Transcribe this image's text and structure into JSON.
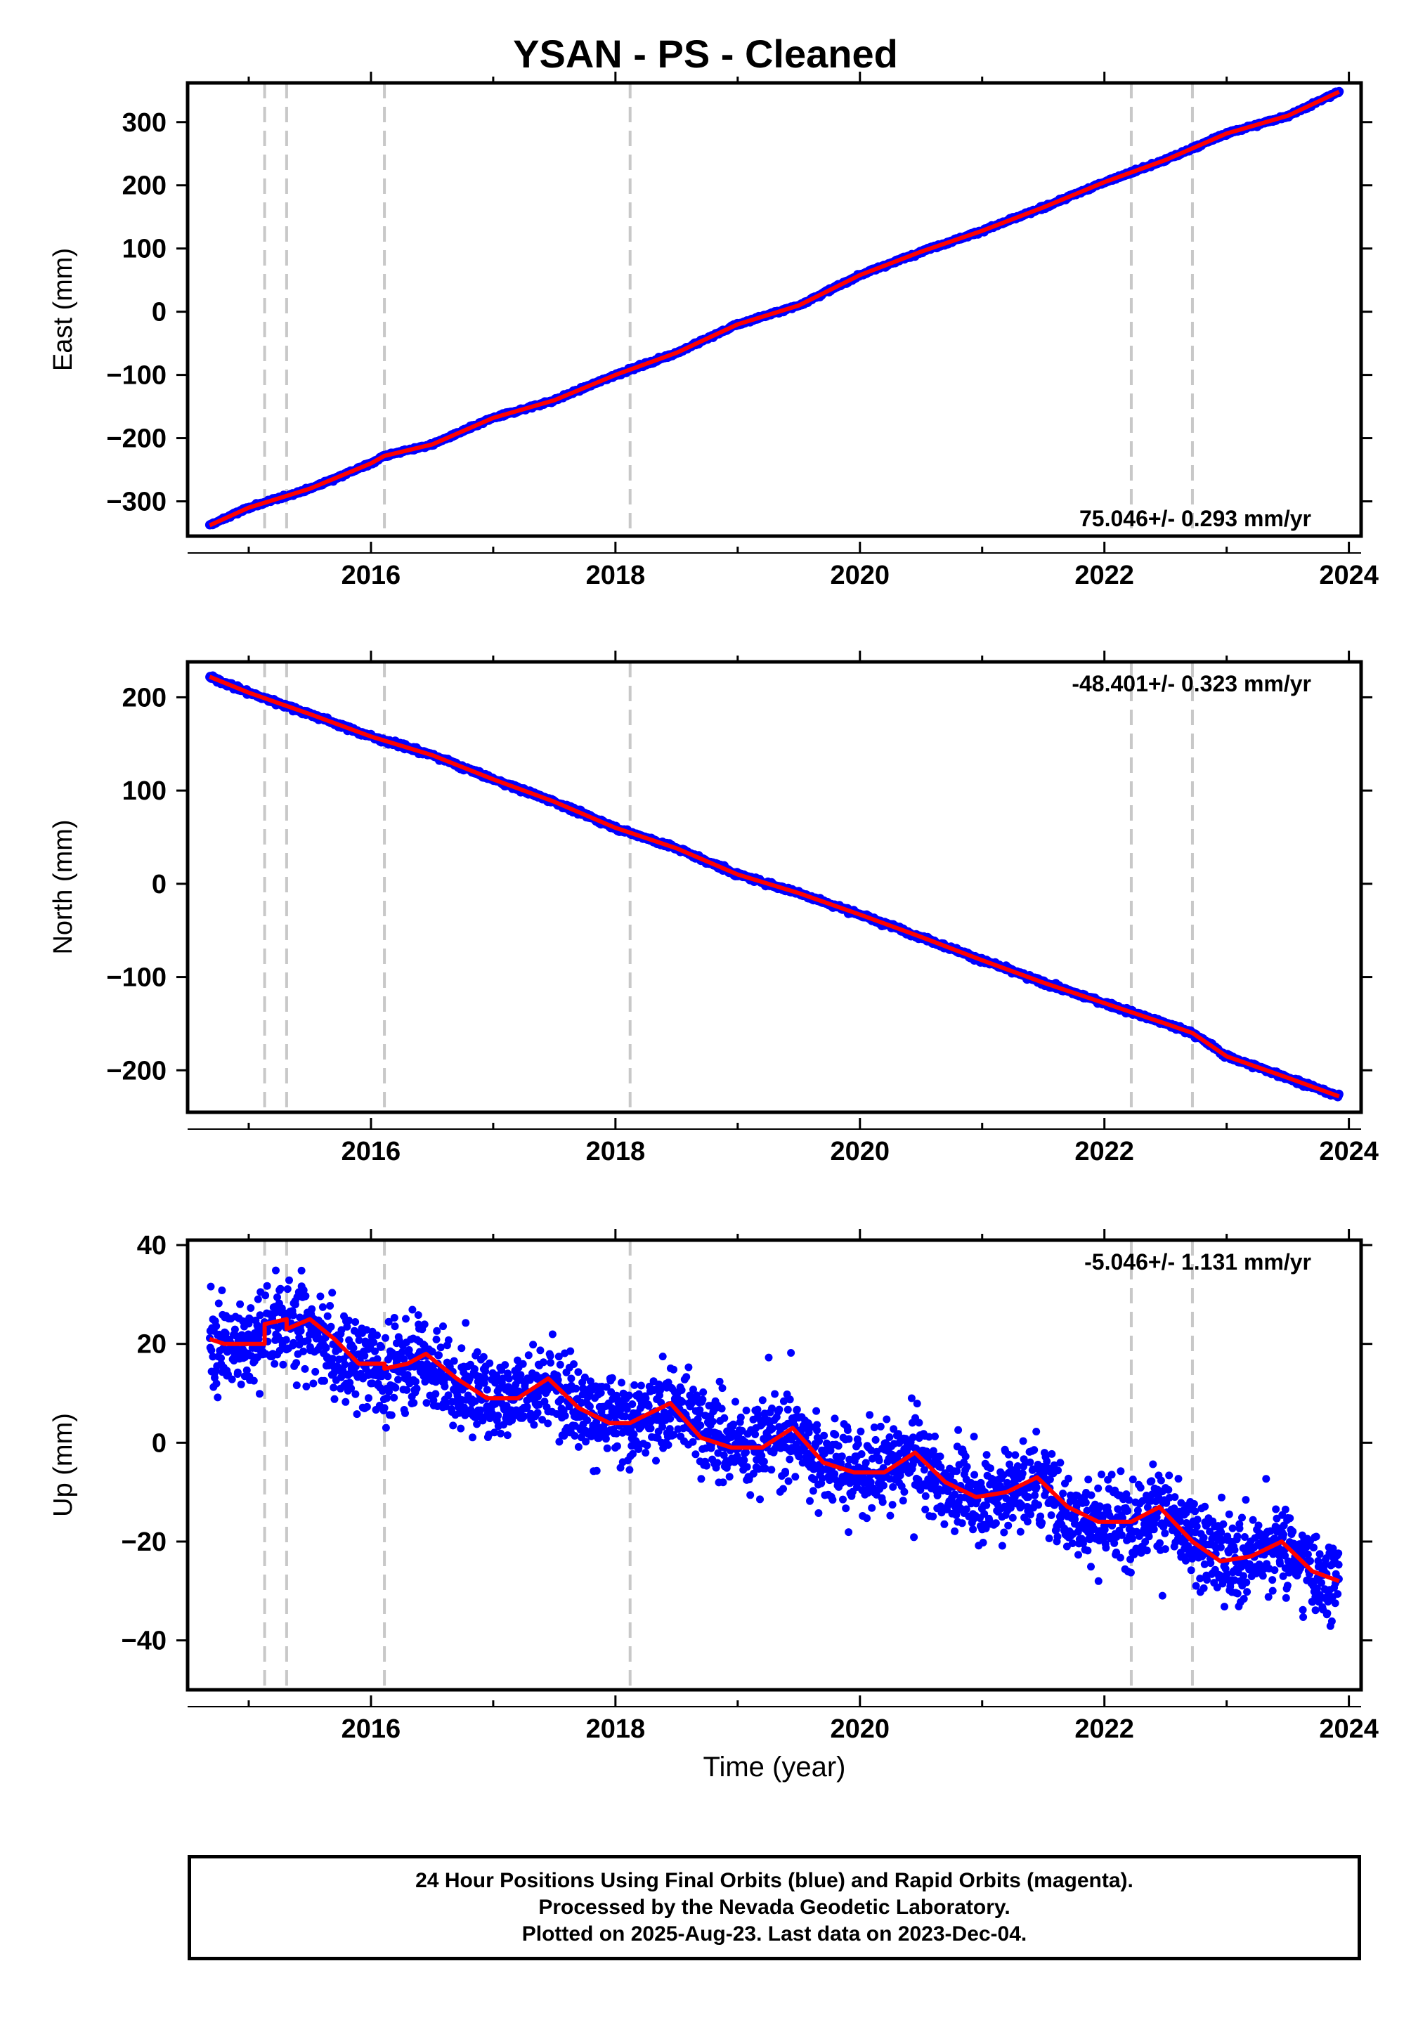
{
  "title": "YSAN  - PS - Cleaned",
  "footer": {
    "line1": "24 Hour Positions Using Final Orbits (blue) and Rapid Orbits (magenta).",
    "line2": "Processed by the Nevada Geodetic Laboratory.",
    "line3": "Plotted on 2025-Aug-23. Last data on 2023-Dec-04."
  },
  "colors": {
    "points": "#0000ff",
    "model": "#ff0000",
    "events": "#c8c8c8",
    "frame": "#000000"
  },
  "chart_data": [
    {
      "type": "scatter",
      "ylabel": "East (mm)",
      "xlabel": "",
      "xlim": [
        2014.5,
        2024.1
      ],
      "ylim": [
        -355,
        362
      ],
      "xticks": [
        "2016",
        "2018",
        "2020",
        "2022",
        "2024"
      ],
      "yticks": [
        "300",
        "200",
        "100",
        "0",
        "−100",
        "−200",
        "−300"
      ],
      "ytick_values": [
        300,
        200,
        100,
        0,
        -100,
        -200,
        -300
      ],
      "rate_label": "75.046+/- 0.293 mm/yr",
      "rate_position": "bottom-right",
      "event_lines": [
        2015.13,
        2015.31,
        2016.11,
        2018.12,
        2022.22,
        2022.72
      ],
      "series": [
        {
          "style": "points",
          "x": [
            2014.68,
            2015.0,
            2015.5,
            2016.0,
            2016.11,
            2016.5,
            2017.0,
            2017.5,
            2018.0,
            2018.5,
            2019.0,
            2019.5,
            2020.0,
            2020.5,
            2021.0,
            2021.5,
            2022.0,
            2022.5,
            2023.0,
            2023.5,
            2023.92
          ],
          "y": [
            -338,
            -310,
            -280,
            -240,
            -228,
            -210,
            -168,
            -140,
            -100,
            -65,
            -20,
            10,
            58,
            95,
            128,
            165,
            205,
            240,
            282,
            310,
            348
          ]
        },
        {
          "style": "line",
          "x": [
            2014.68,
            2015.0,
            2015.5,
            2016.0,
            2016.11,
            2016.5,
            2017.0,
            2017.5,
            2018.0,
            2018.5,
            2019.0,
            2019.5,
            2020.0,
            2020.5,
            2021.0,
            2021.5,
            2022.0,
            2022.5,
            2023.0,
            2023.5,
            2023.92
          ],
          "y": [
            -338,
            -310,
            -280,
            -240,
            -228,
            -210,
            -168,
            -140,
            -100,
            -65,
            -20,
            10,
            58,
            95,
            128,
            165,
            205,
            240,
            282,
            310,
            348
          ]
        }
      ]
    },
    {
      "type": "scatter",
      "ylabel": "North (mm)",
      "xlabel": "",
      "xlim": [
        2014.5,
        2024.1
      ],
      "ylim": [
        -245,
        238
      ],
      "xticks": [
        "2016",
        "2018",
        "2020",
        "2022",
        "2024"
      ],
      "yticks": [
        "200",
        "100",
        "0",
        "−100",
        "−200"
      ],
      "ytick_values": [
        200,
        100,
        0,
        -100,
        -200
      ],
      "rate_label": "-48.401+/- 0.323 mm/yr",
      "rate_position": "top-right",
      "event_lines": [
        2015.13,
        2015.31,
        2016.11,
        2018.12,
        2022.22,
        2022.72
      ],
      "series": [
        {
          "style": "points",
          "x": [
            2014.68,
            2015.0,
            2015.5,
            2016.0,
            2016.5,
            2017.0,
            2017.5,
            2018.0,
            2018.5,
            2019.0,
            2019.5,
            2020.0,
            2020.5,
            2021.0,
            2021.5,
            2022.0,
            2022.5,
            2022.72,
            2023.0,
            2023.5,
            2023.92
          ],
          "y": [
            222,
            205,
            182,
            158,
            138,
            112,
            88,
            60,
            38,
            10,
            -10,
            -33,
            -57,
            -82,
            -106,
            -128,
            -150,
            -160,
            -185,
            -208,
            -228
          ]
        },
        {
          "style": "line",
          "x": [
            2014.68,
            2015.0,
            2015.5,
            2016.0,
            2016.5,
            2017.0,
            2017.5,
            2018.0,
            2018.5,
            2019.0,
            2019.5,
            2020.0,
            2020.5,
            2021.0,
            2021.5,
            2022.0,
            2022.5,
            2022.72,
            2023.0,
            2023.5,
            2023.92
          ],
          "y": [
            222,
            205,
            182,
            158,
            138,
            112,
            88,
            60,
            38,
            10,
            -10,
            -33,
            -57,
            -82,
            -106,
            -128,
            -150,
            -160,
            -185,
            -208,
            -228
          ]
        }
      ]
    },
    {
      "type": "scatter",
      "ylabel": "Up (mm)",
      "xlabel": "Time (year)",
      "xlim": [
        2014.5,
        2024.1
      ],
      "ylim": [
        -50,
        41
      ],
      "xticks": [
        "2016",
        "2018",
        "2020",
        "2022",
        "2024"
      ],
      "yticks": [
        "40",
        "20",
        "0",
        "−20",
        "−40"
      ],
      "ytick_values": [
        40,
        20,
        0,
        -20,
        -40
      ],
      "rate_label": "-5.046+/- 1.131 mm/yr",
      "rate_position": "top-right",
      "event_lines": [
        2015.13,
        2015.31,
        2016.11,
        2018.12,
        2022.22,
        2022.72
      ],
      "series": [
        {
          "style": "points",
          "x": [
            2014.68,
            2014.8,
            2015.0,
            2015.15,
            2015.3,
            2015.5,
            2015.7,
            2016.0,
            2016.11,
            2016.4,
            2016.7,
            2017.0,
            2017.3,
            2017.5,
            2017.8,
            2018.0,
            2018.3,
            2018.5,
            2018.8,
            2019.0,
            2019.2,
            2019.45,
            2019.7,
            2020.0,
            2020.2,
            2020.45,
            2020.7,
            2021.0,
            2021.2,
            2021.45,
            2021.7,
            2022.0,
            2022.2,
            2022.45,
            2022.7,
            2023.0,
            2023.2,
            2023.45,
            2023.7,
            2023.92
          ],
          "y": [
            21,
            20,
            20,
            23,
            25,
            23,
            17,
            16,
            14,
            17,
            11,
            9,
            10,
            12,
            6,
            4,
            5,
            8,
            1,
            -1,
            0,
            2,
            -4,
            -6,
            -5,
            -2,
            -9,
            -11,
            -10,
            -7,
            -14,
            -16,
            -16,
            -13,
            -20,
            -23,
            -23,
            -20,
            -26,
            -28
          ],
          "spread": 6
        },
        {
          "style": "line",
          "x": [
            2014.68,
            2014.8,
            2015.0,
            2015.13,
            2015.13,
            2015.31,
            2015.31,
            2015.5,
            2015.7,
            2015.9,
            2016.11,
            2016.11,
            2016.3,
            2016.45,
            2016.7,
            2016.95,
            2017.2,
            2017.45,
            2017.7,
            2017.95,
            2018.12,
            2018.2,
            2018.45,
            2018.7,
            2018.95,
            2019.2,
            2019.45,
            2019.7,
            2019.95,
            2020.2,
            2020.45,
            2020.7,
            2020.95,
            2021.2,
            2021.45,
            2021.7,
            2021.95,
            2022.22,
            2022.45,
            2022.72,
            2022.95,
            2023.2,
            2023.45,
            2023.7,
            2023.92
          ],
          "y": [
            21,
            20,
            20,
            20,
            24,
            25,
            23,
            25,
            21,
            16,
            16,
            15,
            16,
            18,
            13,
            9,
            9,
            13,
            7,
            4,
            4,
            5,
            8,
            1,
            -1,
            -1,
            3,
            -4,
            -6,
            -6,
            -2,
            -8,
            -11,
            -10,
            -7,
            -13,
            -16,
            -16,
            -13,
            -20,
            -24,
            -23,
            -20,
            -26,
            -28
          ]
        }
      ]
    }
  ]
}
